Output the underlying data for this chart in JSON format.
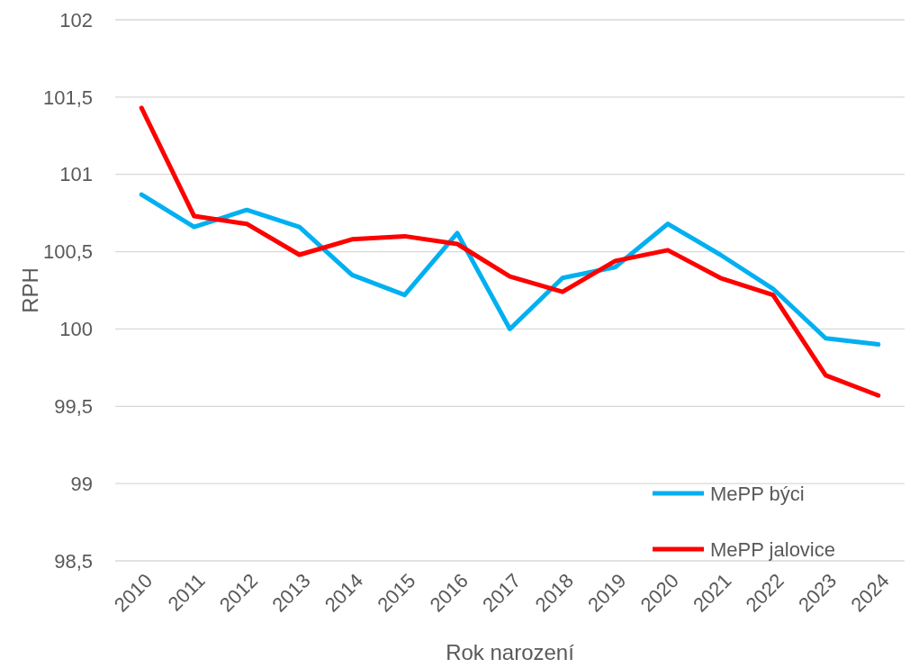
{
  "chart_data": {
    "type": "line",
    "xlabel": "Rok narození",
    "ylabel": "RPH",
    "categories": [
      "2010",
      "2011",
      "2012",
      "2013",
      "2014",
      "2015",
      "2016",
      "2017",
      "2018",
      "2019",
      "2020",
      "2021",
      "2022",
      "2023",
      "2024"
    ],
    "series": [
      {
        "name": "MePP býci",
        "color": "#00b0f0",
        "values": [
          100.87,
          100.66,
          100.77,
          100.66,
          100.35,
          100.22,
          100.62,
          100.0,
          100.33,
          100.4,
          100.68,
          100.48,
          100.26,
          99.94,
          99.9
        ]
      },
      {
        "name": "MePP jalovice",
        "color": "#ff0000",
        "values": [
          101.43,
          100.73,
          100.68,
          100.48,
          100.58,
          100.6,
          100.55,
          100.34,
          100.24,
          100.44,
          100.51,
          100.33,
          100.22,
          99.7,
          99.57
        ]
      }
    ],
    "ylim": [
      98.5,
      102
    ],
    "yticks": [
      {
        "value": 98.5,
        "label": "98,5"
      },
      99,
      {
        "value": 99.5,
        "label": "99,5"
      },
      100,
      {
        "value": 100.5,
        "label": "100,5"
      },
      101,
      {
        "value": 101.5,
        "label": "101,5"
      },
      102
    ],
    "grid": "y",
    "legend": "bottom right",
    "marker": "none",
    "line_style": "solid"
  }
}
